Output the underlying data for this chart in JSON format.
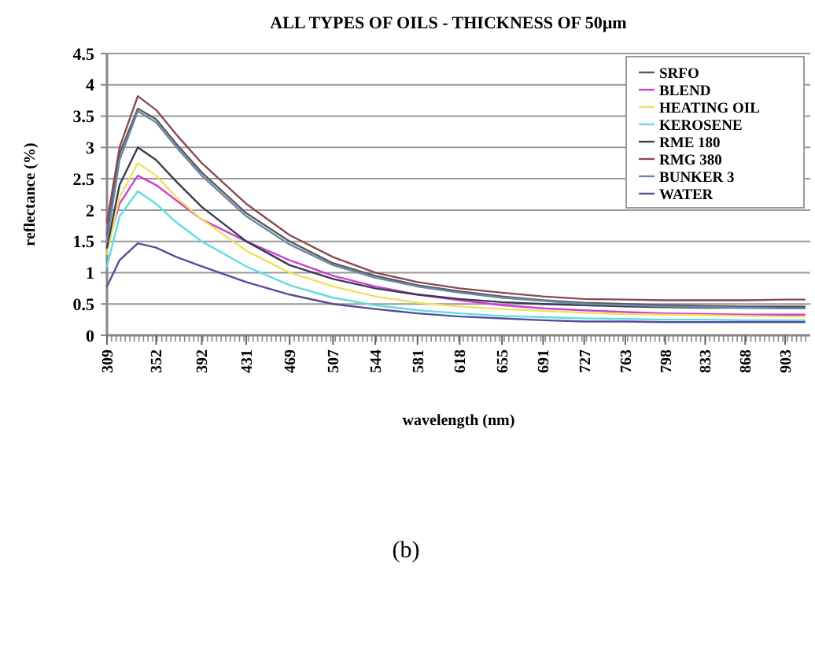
{
  "chart_data": {
    "type": "line",
    "title": "ALL TYPES OF OILS - THICKNESS OF 50µm",
    "xlabel": "wavelength (nm)",
    "ylabel": "reflectance (%)",
    "x": [
      309,
      320,
      336,
      352,
      370,
      392,
      431,
      469,
      507,
      544,
      581,
      618,
      655,
      691,
      727,
      763,
      798,
      833,
      868,
      903,
      920
    ],
    "xlim": [
      309,
      925
    ],
    "xticks": [
      309,
      352,
      392,
      431,
      469,
      507,
      544,
      581,
      618,
      655,
      691,
      727,
      763,
      798,
      833,
      868,
      903
    ],
    "ylim": [
      0,
      4.5
    ],
    "yticks": [
      0,
      0.5,
      1,
      1.5,
      2,
      2.5,
      3,
      3.5,
      4,
      4.5
    ],
    "grid": "y",
    "legend": "top right",
    "marker": "none",
    "line_style": "solid",
    "series": [
      {
        "name": "SRFO",
        "color": "#5a5a5a",
        "values": [
          1.6,
          2.9,
          3.62,
          3.45,
          3.05,
          2.6,
          1.95,
          1.5,
          1.15,
          0.95,
          0.8,
          0.7,
          0.62,
          0.56,
          0.52,
          0.5,
          0.48,
          0.47,
          0.46,
          0.46,
          0.46
        ]
      },
      {
        "name": "BLEND",
        "color": "#d040d0",
        "values": [
          1.4,
          2.1,
          2.55,
          2.4,
          2.15,
          1.85,
          1.5,
          1.2,
          0.95,
          0.78,
          0.65,
          0.56,
          0.48,
          0.43,
          0.4,
          0.37,
          0.35,
          0.34,
          0.33,
          0.33,
          0.33
        ]
      },
      {
        "name": "HEATING OIL",
        "color": "#f0e060",
        "values": [
          1.3,
          2.2,
          2.75,
          2.55,
          2.2,
          1.85,
          1.35,
          1.0,
          0.78,
          0.62,
          0.52,
          0.46,
          0.42,
          0.39,
          0.36,
          0.34,
          0.33,
          0.32,
          0.31,
          0.3,
          0.3
        ]
      },
      {
        "name": "KEROSENE",
        "color": "#60dde0",
        "values": [
          1.1,
          1.9,
          2.3,
          2.1,
          1.8,
          1.5,
          1.1,
          0.8,
          0.6,
          0.48,
          0.4,
          0.35,
          0.31,
          0.29,
          0.27,
          0.26,
          0.25,
          0.25,
          0.24,
          0.24,
          0.24
        ]
      },
      {
        "name": "RME 180",
        "color": "#3a3a50",
        "values": [
          1.4,
          2.4,
          3.0,
          2.8,
          2.45,
          2.05,
          1.5,
          1.12,
          0.9,
          0.75,
          0.65,
          0.58,
          0.53,
          0.5,
          0.48,
          0.46,
          0.45,
          0.44,
          0.44,
          0.44,
          0.44
        ]
      },
      {
        "name": "RMG 380",
        "color": "#8a4a50",
        "values": [
          1.8,
          3.0,
          3.82,
          3.6,
          3.2,
          2.75,
          2.1,
          1.6,
          1.25,
          1.0,
          0.85,
          0.75,
          0.68,
          0.62,
          0.58,
          0.57,
          0.56,
          0.56,
          0.56,
          0.57,
          0.57
        ]
      },
      {
        "name": "BUNKER 3",
        "color": "#6a88a8",
        "values": [
          1.5,
          2.8,
          3.58,
          3.4,
          3.0,
          2.55,
          1.9,
          1.45,
          1.12,
          0.92,
          0.78,
          0.68,
          0.6,
          0.55,
          0.5,
          0.48,
          0.46,
          0.45,
          0.44,
          0.43,
          0.43
        ]
      },
      {
        "name": "WATER",
        "color": "#5a4a9a",
        "values": [
          0.78,
          1.2,
          1.47,
          1.4,
          1.25,
          1.1,
          0.85,
          0.65,
          0.5,
          0.42,
          0.35,
          0.3,
          0.27,
          0.24,
          0.22,
          0.22,
          0.21,
          0.21,
          0.21,
          0.21,
          0.21
        ]
      }
    ],
    "annotations": [
      "(b)"
    ]
  }
}
